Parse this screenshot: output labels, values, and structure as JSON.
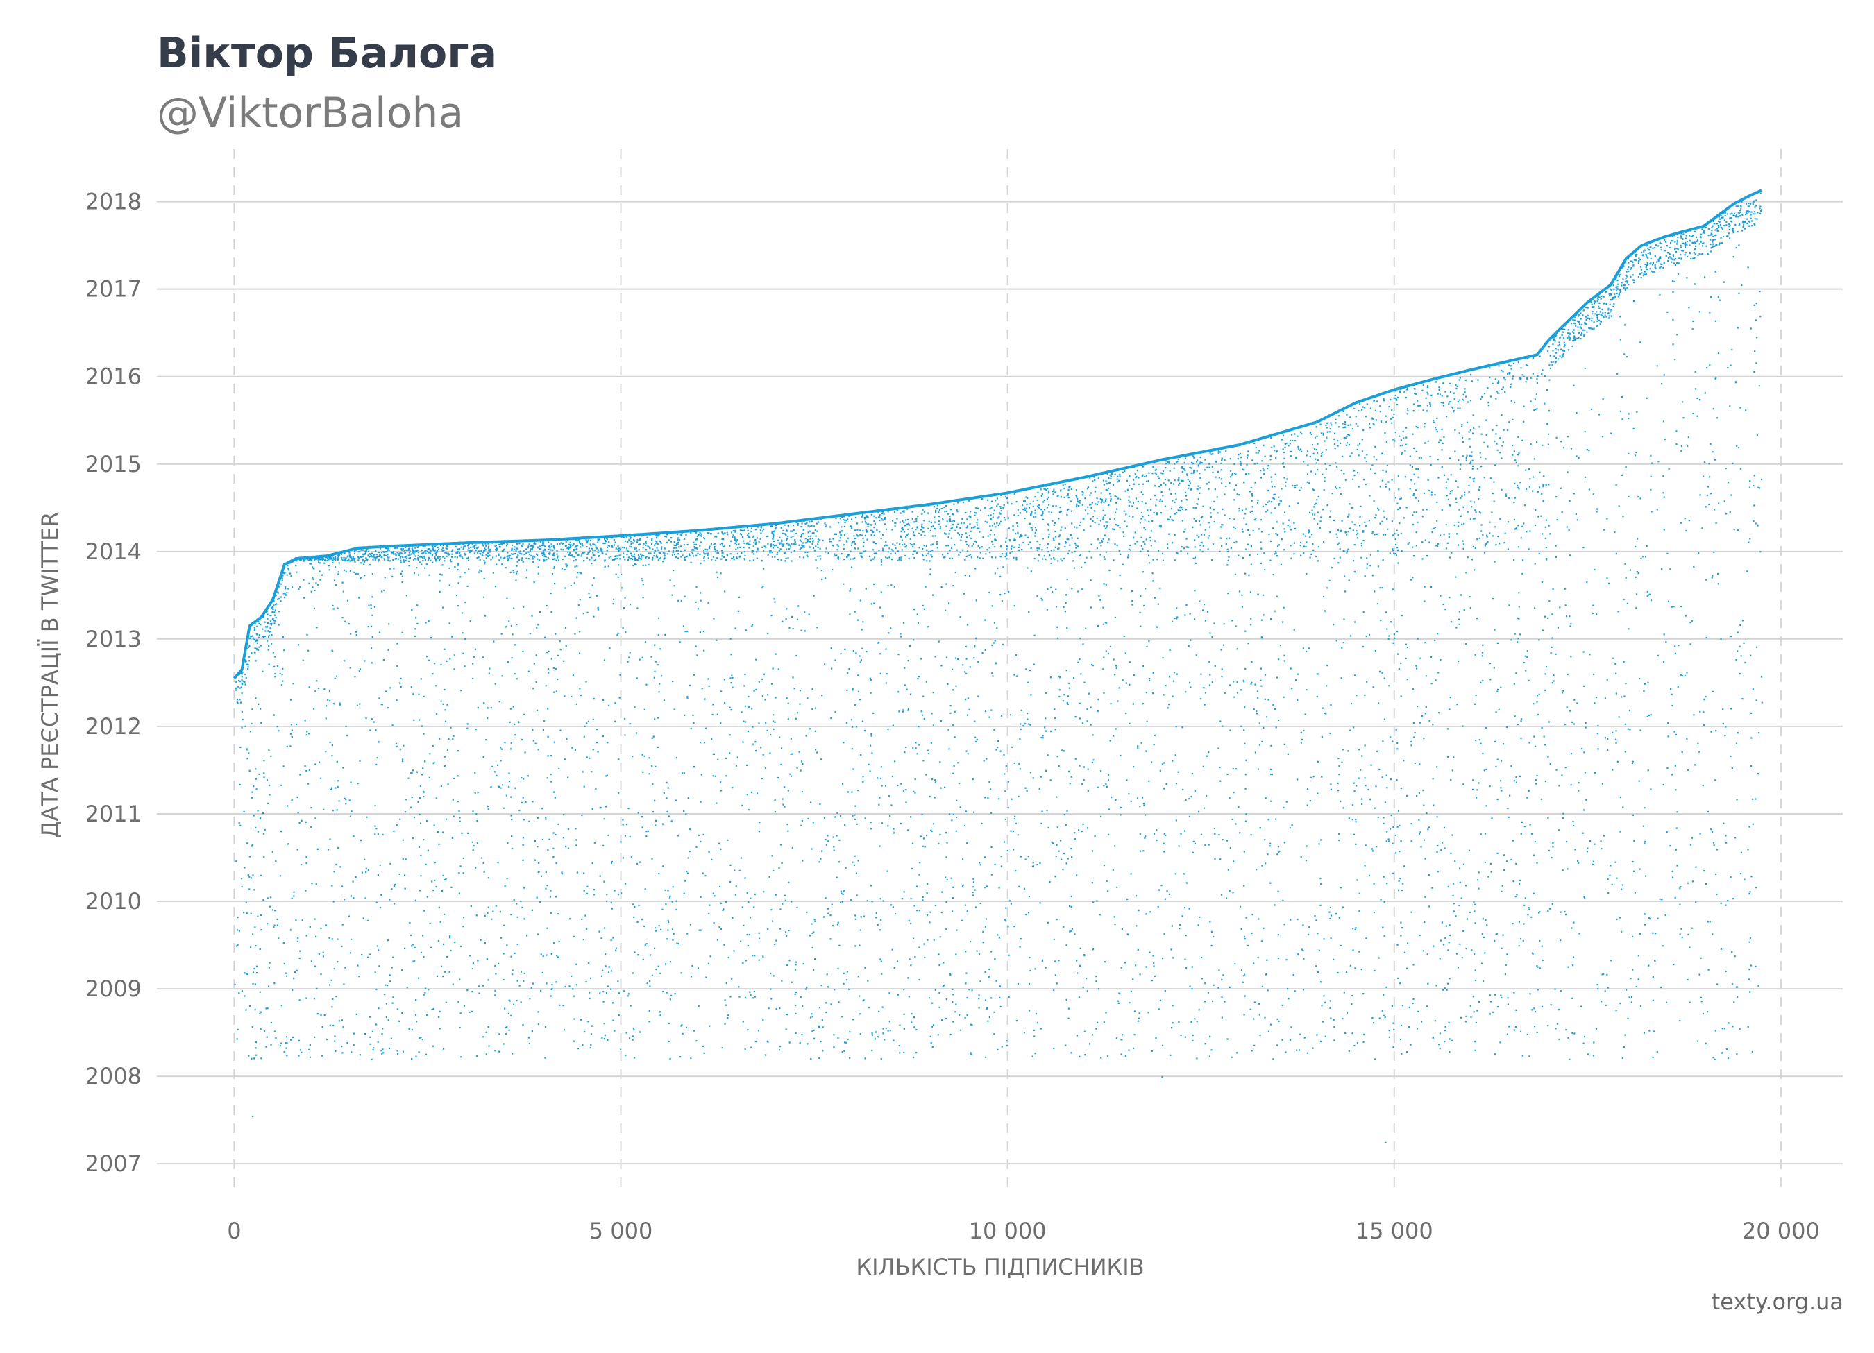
{
  "header": {
    "title": "Віктор Балога",
    "subtitle": "@ViktorBaloha"
  },
  "credit": "texty.org.ua",
  "colors": {
    "points": "#1a9fd8",
    "grid": "#d4d4d4",
    "text": "#6e6e6e",
    "title": "#363d4a"
  },
  "chart_data": {
    "type": "scatter",
    "xlabel": "КІЛЬКІСТЬ ПІДПИСНИКІВ",
    "ylabel": "ДАТА РЕЄСТРАЦІЇ В TWITTER",
    "xlim": [
      -1000,
      20800
    ],
    "ylim": [
      2006.7,
      2018.6
    ],
    "x_ticks": [
      0,
      5000,
      10000,
      15000,
      20000
    ],
    "x_tick_labels": [
      "0",
      "5 000",
      "10 000",
      "15 000",
      "20 000"
    ],
    "y_ticks": [
      2007,
      2008,
      2009,
      2010,
      2011,
      2012,
      2013,
      2014,
      2015,
      2016,
      2017,
      2018
    ],
    "y_tick_labels": [
      "2007",
      "2008",
      "2009",
      "2010",
      "2011",
      "2012",
      "2013",
      "2014",
      "2015",
      "2016",
      "2017",
      "2018"
    ],
    "grid": {
      "horizontal": "solid",
      "vertical": "dashed"
    },
    "total_points": 19700,
    "upper_envelope": {
      "x": [
        0,
        100,
        200,
        350,
        500,
        650,
        800,
        1200,
        1600,
        2000,
        3000,
        4000,
        5000,
        6000,
        7000,
        8000,
        9000,
        10000,
        11000,
        12000,
        13000,
        14000,
        14500,
        15000,
        15500,
        16000,
        16500,
        16850,
        17000,
        17500,
        17800,
        18000,
        18200,
        18500,
        18700,
        19000,
        19200,
        19400,
        19600,
        19750
      ],
      "y": [
        2012.55,
        2012.65,
        2013.15,
        2013.25,
        2013.45,
        2013.85,
        2013.92,
        2013.95,
        2014.04,
        2014.06,
        2014.1,
        2014.13,
        2014.18,
        2014.24,
        2014.32,
        2014.43,
        2014.54,
        2014.67,
        2014.85,
        2015.05,
        2015.22,
        2015.48,
        2015.7,
        2015.85,
        2015.97,
        2016.08,
        2016.18,
        2016.25,
        2016.42,
        2016.85,
        2017.05,
        2017.35,
        2017.5,
        2017.6,
        2017.65,
        2017.72,
        2017.85,
        2017.98,
        2018.07,
        2018.13
      ]
    },
    "dense_band": {
      "lower": 2013.9,
      "x_from": 700,
      "x_to": 17000
    }
  }
}
